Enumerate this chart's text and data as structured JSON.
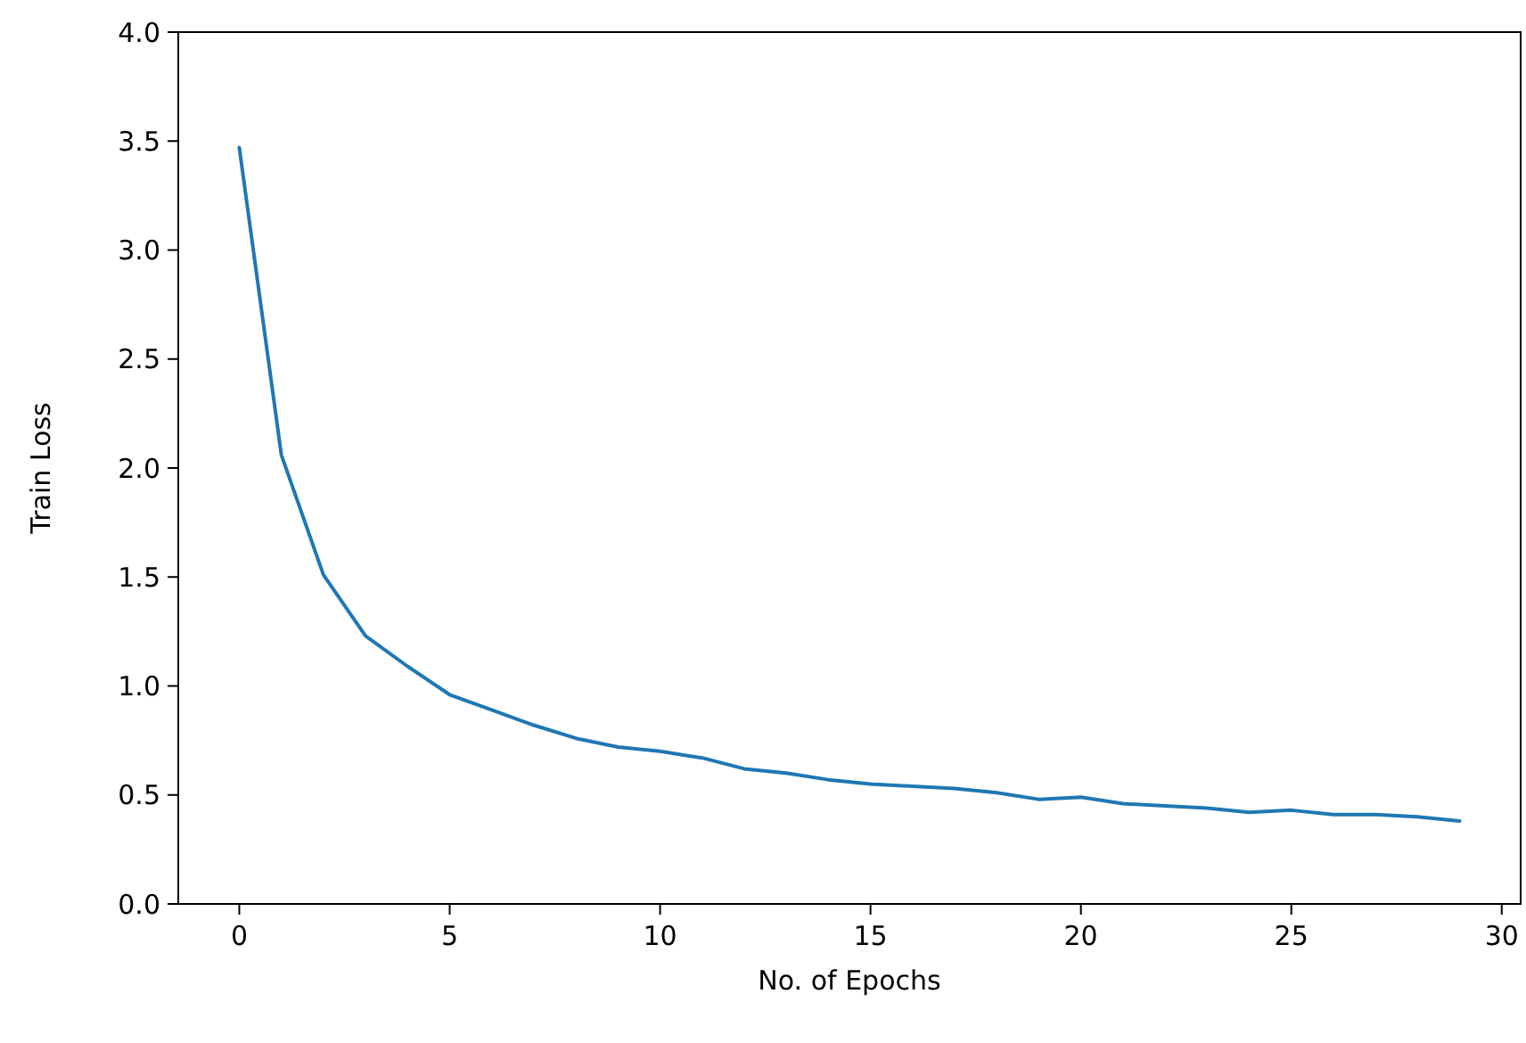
{
  "chart_data": {
    "type": "line",
    "xlabel": "No. of Epochs",
    "ylabel": "Train Loss",
    "x": [
      0,
      1,
      2,
      3,
      4,
      5,
      6,
      7,
      8,
      9,
      10,
      11,
      12,
      13,
      14,
      15,
      16,
      17,
      18,
      19,
      20,
      21,
      22,
      23,
      24,
      25,
      26,
      27,
      28,
      29
    ],
    "series": [
      {
        "color": "#1f77b4",
        "values": [
          3.47,
          2.06,
          1.51,
          1.23,
          1.09,
          0.96,
          0.89,
          0.82,
          0.76,
          0.72,
          0.7,
          0.67,
          0.62,
          0.6,
          0.57,
          0.55,
          0.54,
          0.53,
          0.51,
          0.48,
          0.49,
          0.46,
          0.45,
          0.44,
          0.42,
          0.43,
          0.41,
          0.41,
          0.4,
          0.38
        ]
      }
    ],
    "xlim": [
      -1.45,
      30.45
    ],
    "xticks": [
      0,
      5,
      10,
      15,
      20,
      25,
      30
    ],
    "ylim": [
      0,
      4
    ],
    "yticks": [
      {
        "value": 0,
        "label": "0.0"
      },
      {
        "value": 0.5,
        "label": "0.5"
      },
      {
        "value": 1,
        "label": "1.0"
      },
      {
        "value": 1.5,
        "label": "1.5"
      },
      {
        "value": 2,
        "label": "2.0"
      },
      {
        "value": 2.5,
        "label": "2.5"
      },
      {
        "value": 3,
        "label": "3.0"
      },
      {
        "value": 3.5,
        "label": "3.5"
      },
      {
        "value": 4,
        "label": "4.0"
      }
    ]
  }
}
